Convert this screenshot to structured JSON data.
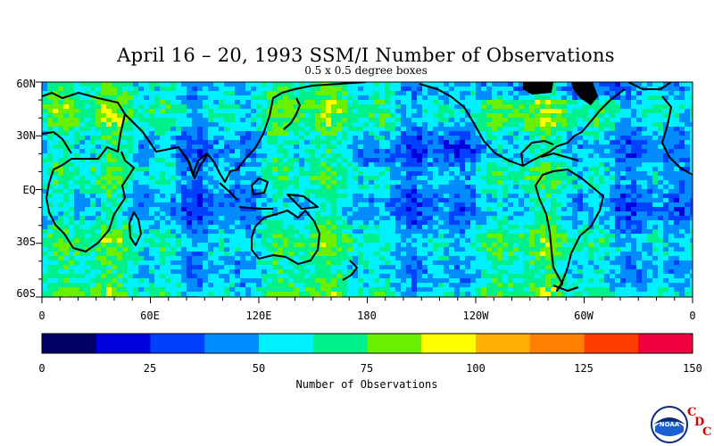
{
  "title": "April 16 – 20, 1993 SSM/I Number of Observations",
  "subtitle": "0.5 x 0.5 degree boxes",
  "y_labels": [
    "60N",
    "30N",
    "EQ",
    "30S",
    "60S"
  ],
  "x_labels": [
    "0",
    "60E",
    "120E",
    "180",
    "120W",
    "60W",
    "0"
  ],
  "colorbar": {
    "title": "Number of Observations",
    "ticks": [
      "0",
      "25",
      "50",
      "75",
      "100",
      "125",
      "150"
    ],
    "colors": [
      "#000066",
      "#0000dd",
      "#0040ff",
      "#008cff",
      "#00f0ff",
      "#00f08c",
      "#68f000",
      "#ffff00",
      "#ffb000",
      "#ff8000",
      "#ff3c00",
      "#f00040"
    ],
    "range": [
      0,
      150
    ]
  },
  "logo": {
    "icon": "noaa-logo-icon",
    "text": "NOAA",
    "letters": [
      "C",
      "D",
      "C"
    ],
    "accent": "#d40000"
  },
  "chart_data": {
    "type": "heatmap",
    "title": "April 16 – 20, 1993 SSM/I Number of Observations",
    "subtitle": "0.5 x 0.5 degree boxes",
    "x_range": [
      0,
      360
    ],
    "y_range": [
      -60,
      60
    ],
    "x_ticks": [
      "0",
      "60E",
      "120E",
      "180",
      "120W",
      "60W",
      "0"
    ],
    "y_ticks": [
      "60N",
      "30N",
      "EQ",
      "30S",
      "60S"
    ],
    "colorbar_label": "Number of Observations",
    "value_range": [
      0,
      150
    ],
    "land_fill": false,
    "coastlines": true
  }
}
